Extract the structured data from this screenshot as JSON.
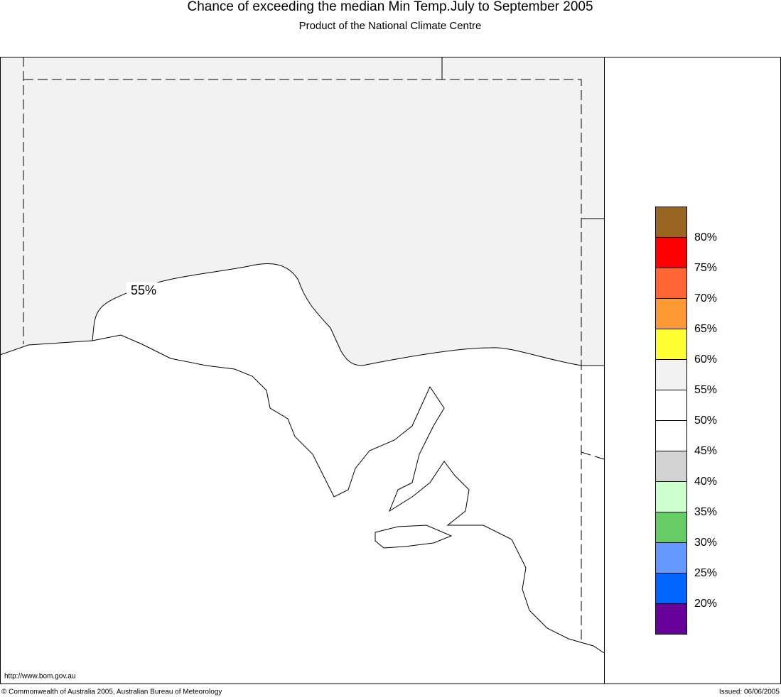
{
  "header": {
    "title": "Chance of exceeding the median Min Temp.July to September 2005",
    "subtitle": "Product of the National Climate Centre"
  },
  "map": {
    "contour_labels": [
      "55%"
    ]
  },
  "legend": {
    "colors": [
      "#996622",
      "#ff0000",
      "#ff6633",
      "#ff9933",
      "#ffff33",
      "#f2f2f2",
      "#ffffff",
      "#ffffff",
      "#d3d3d3",
      "#ccffcc",
      "#66cc66",
      "#6699ff",
      "#0066ff",
      "#660099"
    ],
    "labels": [
      "80%",
      "75%",
      "70%",
      "65%",
      "60%",
      "55%",
      "50%",
      "45%",
      "40%",
      "35%",
      "30%",
      "25%",
      "20%"
    ]
  },
  "footer": {
    "url": "http://www.bom.gov.au",
    "copyright": "© Commonwealth of Australia 2005, Australian Bureau of Meteorology",
    "issued": "Issued: 06/06/2005"
  }
}
